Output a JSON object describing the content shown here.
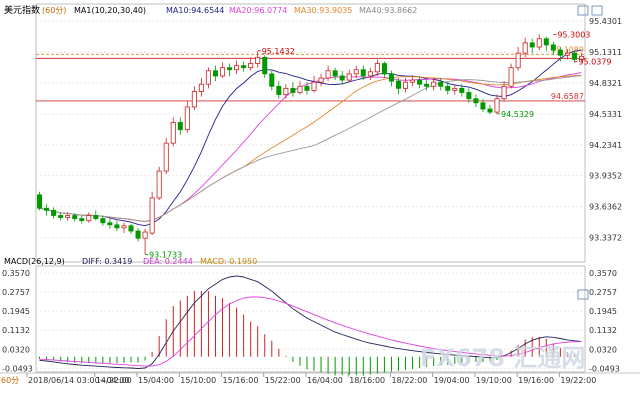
{
  "chart_data": {
    "title": "美元指数",
    "period": "60分",
    "ma_legend": [
      {
        "label": "MA1(10,20,30,40)",
        "color": "#000000"
      },
      {
        "label": "MA10:94.6544",
        "color": "#1f1f8f"
      },
      {
        "label": "MA20:96.0774",
        "color": "#e040e0"
      },
      {
        "label": "MA30:93.9035",
        "color": "#e08a2a"
      },
      {
        "label": "MA40:93.8662",
        "color": "#888888"
      }
    ],
    "price_axis": {
      "ticks": [
        "95.4301",
        "95.1311",
        "94.8321",
        "94.5331",
        "94.2341",
        "93.9352",
        "93.6362",
        "93.3372"
      ],
      "ylim": [
        93.1,
        95.48
      ]
    },
    "annotations": [
      {
        "text": "95.1432",
        "value": 95.1432,
        "bar": 31,
        "color": "#cc0000"
      },
      {
        "text": "95.3003",
        "value": 95.3003,
        "bar": 73,
        "color": "#cc0000"
      },
      {
        "text": "95.0379",
        "value": 95.0379,
        "bar": 76,
        "color": "#cc0000"
      },
      {
        "text": "94.5329",
        "value": 94.5329,
        "bar": 65,
        "color": "#009900"
      },
      {
        "text": "93.1733",
        "value": 93.1733,
        "bar": 15,
        "color": "#009900"
      }
    ],
    "h_lines": [
      {
        "text": "95.1089",
        "value": 95.1089,
        "color": "#e08a2a",
        "style": "dashed"
      },
      {
        "text": "",
        "value": 95.07,
        "color": "#cc3333",
        "style": "solid"
      },
      {
        "text": "94.6587",
        "value": 94.6587,
        "color": "#cc3333",
        "style": "solid"
      }
    ],
    "candles": [
      [
        93.75,
        93.62,
        93.78,
        93.6
      ],
      [
        93.62,
        93.6,
        93.66,
        93.55
      ],
      [
        93.6,
        93.55,
        93.63,
        93.52
      ],
      [
        93.55,
        93.53,
        93.58,
        93.5
      ],
      [
        93.53,
        93.55,
        93.58,
        93.5
      ],
      [
        93.55,
        93.52,
        93.57,
        93.49
      ],
      [
        93.52,
        93.5,
        93.55,
        93.47
      ],
      [
        93.5,
        93.55,
        93.58,
        93.48
      ],
      [
        93.55,
        93.52,
        93.6,
        93.5
      ],
      [
        93.52,
        93.48,
        93.55,
        93.45
      ],
      [
        93.48,
        93.46,
        93.52,
        93.42
      ],
      [
        93.46,
        93.43,
        93.5,
        93.4
      ],
      [
        93.43,
        93.45,
        93.48,
        93.38
      ],
      [
        93.45,
        93.4,
        93.47,
        93.37
      ],
      [
        93.4,
        93.33,
        93.43,
        93.3
      ],
      [
        93.33,
        93.39,
        93.42,
        93.17
      ],
      [
        93.38,
        93.72,
        93.78,
        93.36
      ],
      [
        93.72,
        93.98,
        94.02,
        93.7
      ],
      [
        93.98,
        94.25,
        94.3,
        93.95
      ],
      [
        94.25,
        94.45,
        94.5,
        94.22
      ],
      [
        94.45,
        94.38,
        94.5,
        94.33
      ],
      [
        94.38,
        94.6,
        94.66,
        94.35
      ],
      [
        94.6,
        94.75,
        94.8,
        94.57
      ],
      [
        94.75,
        94.82,
        94.88,
        94.7
      ],
      [
        94.82,
        94.95,
        94.98,
        94.78
      ],
      [
        94.95,
        94.9,
        95.0,
        94.85
      ],
      [
        94.9,
        94.98,
        95.03,
        94.88
      ],
      [
        94.98,
        94.96,
        95.02,
        94.9
      ],
      [
        94.96,
        95.0,
        95.05,
        94.92
      ],
      [
        95.0,
        94.98,
        95.04,
        94.94
      ],
      [
        94.98,
        95.02,
        95.08,
        94.95
      ],
      [
        95.02,
        95.08,
        95.14,
        94.98
      ],
      [
        95.08,
        94.92,
        95.1,
        94.88
      ],
      [
        94.92,
        94.8,
        94.95,
        94.76
      ],
      [
        94.8,
        94.72,
        94.85,
        94.68
      ],
      [
        94.72,
        94.78,
        94.82,
        94.68
      ],
      [
        94.78,
        94.74,
        94.84,
        94.7
      ],
      [
        94.74,
        94.8,
        94.85,
        94.72
      ],
      [
        94.8,
        94.76,
        94.84,
        94.72
      ],
      [
        94.76,
        94.84,
        94.9,
        94.74
      ],
      [
        94.84,
        94.88,
        94.92,
        94.8
      ],
      [
        94.88,
        94.95,
        95.0,
        94.85
      ],
      [
        94.95,
        94.9,
        94.98,
        94.86
      ],
      [
        94.9,
        94.86,
        94.95,
        94.82
      ],
      [
        94.86,
        94.92,
        94.96,
        94.84
      ],
      [
        94.92,
        94.96,
        95.0,
        94.88
      ],
      [
        94.96,
        94.9,
        95.0,
        94.86
      ],
      [
        94.9,
        94.94,
        94.98,
        94.86
      ],
      [
        94.94,
        95.02,
        95.06,
        94.9
      ],
      [
        95.02,
        94.92,
        95.04,
        94.88
      ],
      [
        94.92,
        94.85,
        94.95,
        94.8
      ],
      [
        94.85,
        94.78,
        94.88,
        94.72
      ],
      [
        94.78,
        94.84,
        94.88,
        94.74
      ],
      [
        94.84,
        94.86,
        94.9,
        94.8
      ],
      [
        94.86,
        94.82,
        94.9,
        94.78
      ],
      [
        94.82,
        94.8,
        94.86,
        94.76
      ],
      [
        94.8,
        94.84,
        94.88,
        94.76
      ],
      [
        94.84,
        94.8,
        94.88,
        94.76
      ],
      [
        94.8,
        94.76,
        94.84,
        94.72
      ],
      [
        94.76,
        94.78,
        94.82,
        94.72
      ],
      [
        94.78,
        94.74,
        94.82,
        94.7
      ],
      [
        94.74,
        94.68,
        94.78,
        94.64
      ],
      [
        94.68,
        94.64,
        94.72,
        94.6
      ],
      [
        94.64,
        94.58,
        94.68,
        94.55
      ],
      [
        94.58,
        94.55,
        94.62,
        94.53
      ],
      [
        94.55,
        94.68,
        94.72,
        94.53
      ],
      [
        94.68,
        94.8,
        94.85,
        94.65
      ],
      [
        94.8,
        94.98,
        95.02,
        94.78
      ],
      [
        94.98,
        95.12,
        95.18,
        94.95
      ],
      [
        95.12,
        95.22,
        95.27,
        95.08
      ],
      [
        95.22,
        95.18,
        95.26,
        95.12
      ],
      [
        95.18,
        95.26,
        95.3,
        95.15
      ],
      [
        95.26,
        95.2,
        95.28,
        95.14
      ],
      [
        95.2,
        95.15,
        95.23,
        95.1
      ],
      [
        95.15,
        95.1,
        95.18,
        95.04
      ],
      [
        95.1,
        95.12,
        95.16,
        95.06
      ],
      [
        95.12,
        95.06,
        95.14,
        95.03
      ],
      [
        95.06,
        95.09,
        95.12,
        95.04
      ]
    ],
    "macd": {
      "label": "MACD(26,12,9)",
      "diff_label": "DIFF: 0.3419",
      "dea_label": "DEA: 0.2444",
      "macd_label": "MACD: 0.1950",
      "ticks": [
        "0.3570",
        "0.2757",
        "0.1945",
        "0.1132",
        "0.0320",
        "-0.0493"
      ],
      "ylim": [
        -0.065,
        0.37
      ],
      "diff": [
        -0.015,
        -0.018,
        -0.022,
        -0.026,
        -0.03,
        -0.033,
        -0.036,
        -0.038,
        -0.04,
        -0.042,
        -0.044,
        -0.046,
        -0.047,
        -0.048,
        -0.05,
        -0.048,
        -0.03,
        0.01,
        0.06,
        0.11,
        0.15,
        0.19,
        0.23,
        0.26,
        0.29,
        0.31,
        0.33,
        0.34,
        0.345,
        0.34,
        0.33,
        0.32,
        0.3,
        0.28,
        0.255,
        0.23,
        0.205,
        0.185,
        0.165,
        0.15,
        0.135,
        0.12,
        0.105,
        0.095,
        0.085,
        0.075,
        0.065,
        0.058,
        0.052,
        0.046,
        0.04,
        0.035,
        0.03,
        0.026,
        0.022,
        0.018,
        0.015,
        0.012,
        0.009,
        0.007,
        0.005,
        0.003,
        0.001,
        -0.002,
        -0.004,
        -0.003,
        0.005,
        0.018,
        0.035,
        0.055,
        0.07,
        0.08,
        0.085,
        0.083,
        0.078,
        0.072,
        0.068,
        0.065
      ],
      "dea": [
        -0.01,
        -0.012,
        -0.014,
        -0.016,
        -0.018,
        -0.02,
        -0.022,
        -0.024,
        -0.026,
        -0.028,
        -0.03,
        -0.032,
        -0.034,
        -0.036,
        -0.038,
        -0.04,
        -0.04,
        -0.034,
        -0.02,
        0.002,
        0.03,
        0.06,
        0.09,
        0.12,
        0.15,
        0.18,
        0.205,
        0.225,
        0.24,
        0.25,
        0.255,
        0.255,
        0.252,
        0.246,
        0.238,
        0.228,
        0.216,
        0.204,
        0.192,
        0.18,
        0.168,
        0.156,
        0.145,
        0.134,
        0.124,
        0.114,
        0.105,
        0.096,
        0.088,
        0.08,
        0.072,
        0.065,
        0.058,
        0.052,
        0.046,
        0.04,
        0.035,
        0.03,
        0.026,
        0.022,
        0.018,
        0.015,
        0.012,
        0.009,
        0.006,
        0.004,
        0.003,
        0.005,
        0.01,
        0.018,
        0.028,
        0.038,
        0.047,
        0.054,
        0.059,
        0.062,
        0.064,
        0.065
      ]
    },
    "x_axis": {
      "labels": [
        {
          "text": "2018/06/14 03:00~04:00",
          "bar": 0
        },
        {
          "text": "14/22:00",
          "bar": 8
        },
        {
          "text": "15/04:00",
          "bar": 14
        },
        {
          "text": "15/10:00",
          "bar": 20
        },
        {
          "text": "15/16:00",
          "bar": 26
        },
        {
          "text": "15/22:00",
          "bar": 32
        },
        {
          "text": "16/04:00",
          "bar": 38
        },
        {
          "text": "18/16:00",
          "bar": 44
        },
        {
          "text": "18/22:00",
          "bar": 50
        },
        {
          "text": "19/04:00",
          "bar": 56
        },
        {
          "text": "19/10:00",
          "bar": 62
        },
        {
          "text": "19/16:00",
          "bar": 68
        },
        {
          "text": "19/22:00",
          "bar": 74
        }
      ]
    },
    "period_tag": "60分",
    "watermark": "FX678 汇通网",
    "colors": {
      "up": "#cc2222",
      "down": "#009900",
      "grid": "#d8d8d8"
    }
  }
}
